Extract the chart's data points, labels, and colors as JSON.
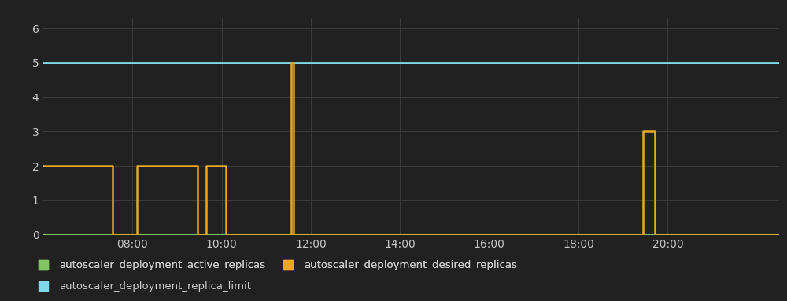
{
  "background_color": "#212121",
  "plot_bg_color": "#212121",
  "grid_color": "#404040",
  "text_color": "#c8c8c8",
  "ylim": [
    0,
    6.3
  ],
  "xlim": [
    6.0,
    22.5
  ],
  "yticks": [
    0,
    1,
    2,
    3,
    4,
    5,
    6
  ],
  "xtick_labels": [
    "08:00",
    "10:00",
    "12:00",
    "14:00",
    "16:00",
    "18:00",
    "20:00"
  ],
  "xtick_positions": [
    8,
    10,
    12,
    14,
    16,
    18,
    20
  ],
  "replica_limit": {
    "value": 5,
    "color": "#7fd8e8",
    "linewidth": 2.0,
    "label": "autoscaler_deployment_replica_limit"
  },
  "desired_replicas": {
    "color": "#e8a820",
    "linewidth": 1.8,
    "label": "autoscaler_deployment_desired_replicas",
    "x": [
      6.0,
      7.55,
      7.55,
      8.1,
      8.1,
      9.45,
      9.45,
      9.65,
      9.65,
      10.1,
      10.1,
      11.55,
      11.55,
      11.62,
      11.62,
      11.95,
      11.95,
      12.0,
      12.0,
      19.45,
      19.45,
      19.72,
      19.72,
      22.5
    ],
    "y": [
      2,
      2,
      0,
      0,
      2,
      2,
      0,
      0,
      2,
      2,
      0,
      0,
      5,
      5,
      0,
      0,
      0,
      0,
      0,
      0,
      3,
      3,
      0,
      0
    ]
  },
  "active_replicas": {
    "color": "#82c462",
    "linewidth": 1.5,
    "label": "autoscaler_deployment_active_replicas",
    "x": [
      6.0,
      22.5
    ],
    "y": [
      0,
      0
    ]
  },
  "figsize": [
    10.0,
    3.83
  ],
  "dpi": 100,
  "legend_ncol_row1": 2,
  "legend_fontsize": 9.5
}
